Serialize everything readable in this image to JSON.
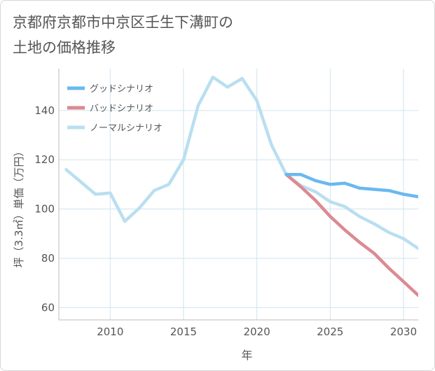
{
  "page": {
    "title_line1": "京都府京都市中京区壬生下溝町の",
    "title_line2": "土地の価格推移"
  },
  "chart_data": {
    "type": "line",
    "title": "京都府京都市中京区壬生下溝町の土地の価格推移",
    "xlabel": "年",
    "ylabel": "坪（3.3㎡）単価（万円）",
    "xlim": [
      2006.5,
      2031
    ],
    "ylim": [
      55,
      157
    ],
    "xticks": [
      2010,
      2015,
      2020,
      2025,
      2030
    ],
    "yticks": [
      60,
      80,
      100,
      120,
      140
    ],
    "grid": true,
    "legend_position": "top-left",
    "series": [
      {
        "name": "グッドシナリオ",
        "color": "#6ab8f0",
        "x": [
          2022,
          2023,
          2024,
          2025,
          2026,
          2027,
          2028,
          2029,
          2030,
          2031
        ],
        "y": [
          114,
          114,
          111.5,
          110,
          110.5,
          108.5,
          108,
          107.5,
          106,
          105
        ]
      },
      {
        "name": "バッドシナリオ",
        "color": "#dc8a92",
        "x": [
          2022,
          2023,
          2024,
          2025,
          2026,
          2027,
          2028,
          2029,
          2030,
          2031
        ],
        "y": [
          114,
          109,
          103.5,
          97,
          91.5,
          86.5,
          82,
          76,
          70.5,
          65
        ]
      },
      {
        "name": "ノーマルシナリオ",
        "color": "#b9dff0",
        "x": [
          2007,
          2008,
          2009,
          2010,
          2011,
          2012,
          2013,
          2014,
          2015,
          2016,
          2017,
          2018,
          2019,
          2020,
          2021,
          2022,
          2023,
          2024,
          2025,
          2026,
          2027,
          2028,
          2029,
          2030,
          2031
        ],
        "y": [
          116,
          111,
          106,
          106.5,
          95,
          100.5,
          107.5,
          110,
          120,
          142,
          153.5,
          149.5,
          153,
          144,
          126,
          114,
          109.5,
          107,
          103,
          101,
          97,
          94,
          90.5,
          88,
          84
        ]
      }
    ]
  }
}
